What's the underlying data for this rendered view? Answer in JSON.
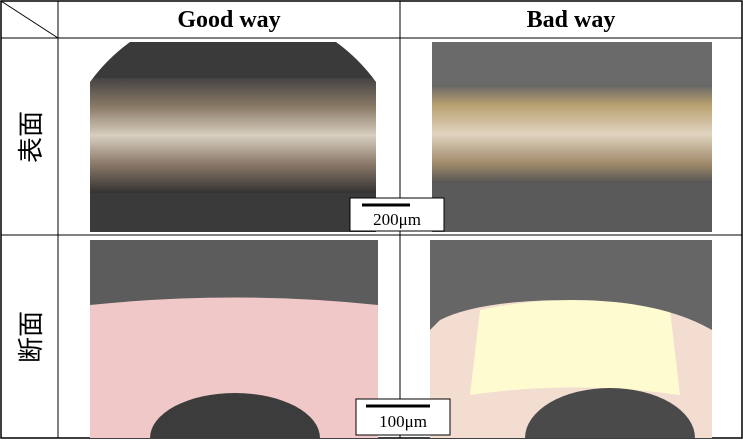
{
  "table": {
    "header": [
      "Good way",
      "Bad way"
    ],
    "rows": [
      {
        "label": "表面",
        "scale": "200μm"
      },
      {
        "label": "断面",
        "scale": "100μm"
      }
    ]
  }
}
